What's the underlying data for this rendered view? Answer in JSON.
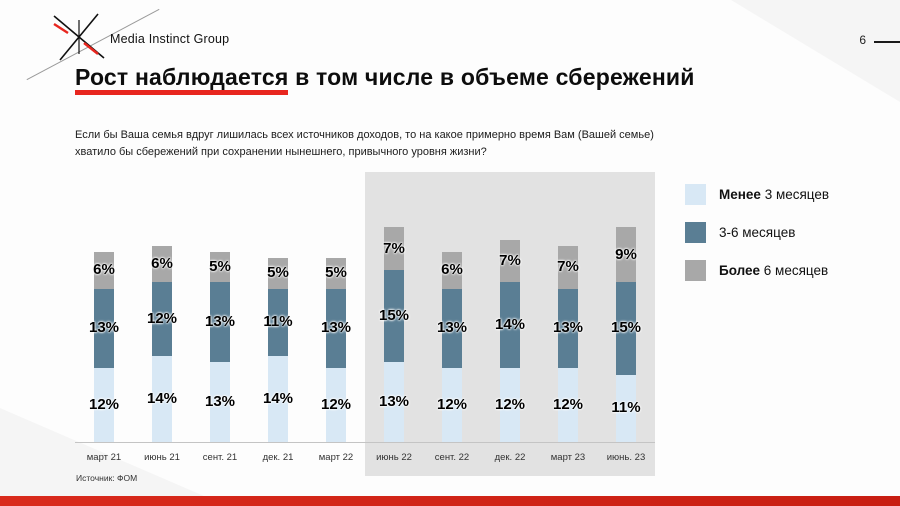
{
  "header": {
    "brand": "Media Instinct Group",
    "page_number": "6"
  },
  "title": {
    "highlighted": "Рост наблюдается",
    "rest": " в том числе в объеме сбережений"
  },
  "question": "Если бы Ваша семья вдруг лишилась всех источников доходов, то на какое примерно время Вам (Вашей семье) хватило бы сбережений при сохранении нынешнего, привычного уровня жизни?",
  "legend": [
    {
      "bold": "Менее",
      "rest": " 3 месяцев",
      "color": "#d8e8f5"
    },
    {
      "bold": "",
      "rest": "3-6 месяцев",
      "color": "#5a7e94"
    },
    {
      "bold": "Более",
      "rest": " 6 месяцев",
      "color": "#a8a8a8"
    }
  ],
  "source": "Источник: ФОМ",
  "chart_data": {
    "type": "bar",
    "stacked": true,
    "title": "Рост наблюдается в том числе в объеме сбережений",
    "categories": [
      "март 21",
      "июнь 21",
      "сент. 21",
      "дек. 21",
      "март 22",
      "июнь 22",
      "сент. 22",
      "дек. 22",
      "март 23",
      "июнь. 23"
    ],
    "series": [
      {
        "name": "Менее 3 месяцев",
        "color": "#d8e8f5",
        "values": [
          12,
          14,
          13,
          14,
          12,
          13,
          12,
          12,
          12,
          11
        ]
      },
      {
        "name": "3-6 месяцев",
        "color": "#5a7e94",
        "values": [
          13,
          12,
          13,
          11,
          13,
          15,
          13,
          14,
          13,
          15
        ]
      },
      {
        "name": "Более 6 месяцев",
        "color": "#a8a8a8",
        "values": [
          6,
          6,
          5,
          5,
          5,
          7,
          6,
          7,
          7,
          9
        ]
      }
    ],
    "value_suffix": "%",
    "ymax": 44,
    "grid": false,
    "legend_position": "right",
    "highlight_range": {
      "from": "июнь 22",
      "to": "июнь. 23"
    }
  }
}
